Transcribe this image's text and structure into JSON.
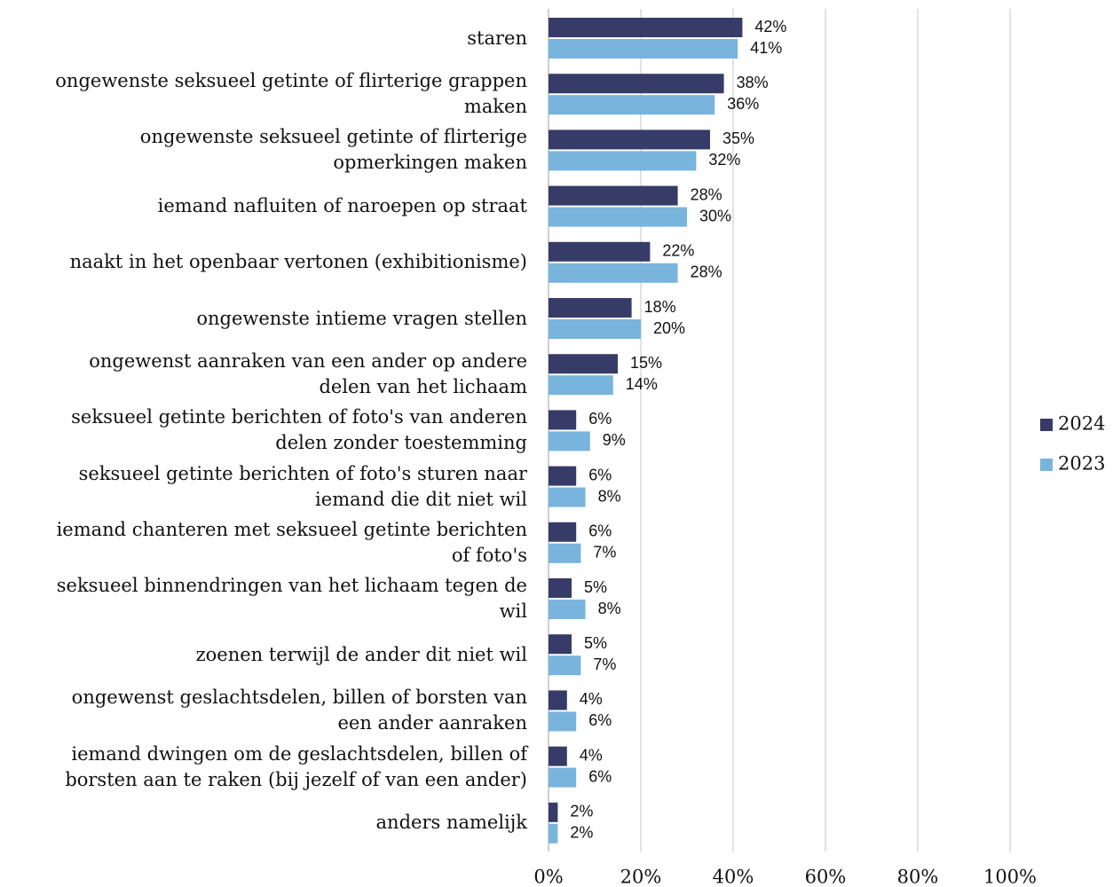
{
  "chart_data": {
    "type": "bar",
    "orientation": "horizontal",
    "categories": [
      "staren",
      "ongewenste seksueel getinte of flirterige grappen\nmaken",
      "ongewenste seksueel getinte of flirterige\nopmerkingen maken",
      "iemand nafluiten of naroepen op straat",
      "naakt in het openbaar vertonen (exhibitionisme)",
      "ongewenste intieme vragen stellen",
      "ongewenst aanraken van een ander op andere\ndelen van het lichaam",
      "seksueel getinte berichten of foto's van anderen\ndelen zonder toestemming",
      "seksueel getinte berichten  of foto's sturen naar\niemand die dit niet wil",
      "iemand chanteren met seksueel getinte berichten\nof foto's",
      "seksueel binnendringen van het lichaam tegen de\nwil",
      "zoenen terwijl de ander dit niet wil",
      "ongewenst geslachtsdelen, billen of borsten van\neen ander aanraken",
      "iemand dwingen om de geslachtsdelen, billen of\nborsten aan te raken (bij jezelf of van een ander)",
      "anders namelijk"
    ],
    "series": [
      {
        "name": "2024",
        "color": "#363b68",
        "values": [
          42,
          38,
          35,
          28,
          22,
          18,
          15,
          6,
          6,
          6,
          5,
          5,
          4,
          4,
          2
        ],
        "value_labels": [
          "42%",
          "38%",
          "35%",
          "28%",
          "22%",
          "18%",
          "15%",
          "6%",
          "6%",
          "6%",
          "5%",
          "5%",
          "4%",
          "4%",
          "2%"
        ]
      },
      {
        "name": "2023",
        "color": "#79b4dc",
        "values": [
          41,
          36,
          32,
          30,
          28,
          20,
          14,
          9,
          8,
          7,
          8,
          7,
          6,
          6,
          2
        ],
        "value_labels": [
          "41%",
          "36%",
          "32%",
          "30%",
          "28%",
          "20%",
          "14%",
          "9%",
          "8%",
          "7%",
          "8%",
          "7%",
          "6%",
          "6%",
          "2%"
        ]
      }
    ],
    "xlim": [
      0,
      100
    ],
    "xticks": [
      {
        "value": 0,
        "label": "0%"
      },
      {
        "value": 20,
        "label": "20%"
      },
      {
        "value": 40,
        "label": "40%"
      },
      {
        "value": 60,
        "label": "60%"
      },
      {
        "value": 80,
        "label": "80%"
      },
      {
        "value": 100,
        "label": "100%"
      }
    ],
    "grid": true,
    "legend": "right"
  }
}
